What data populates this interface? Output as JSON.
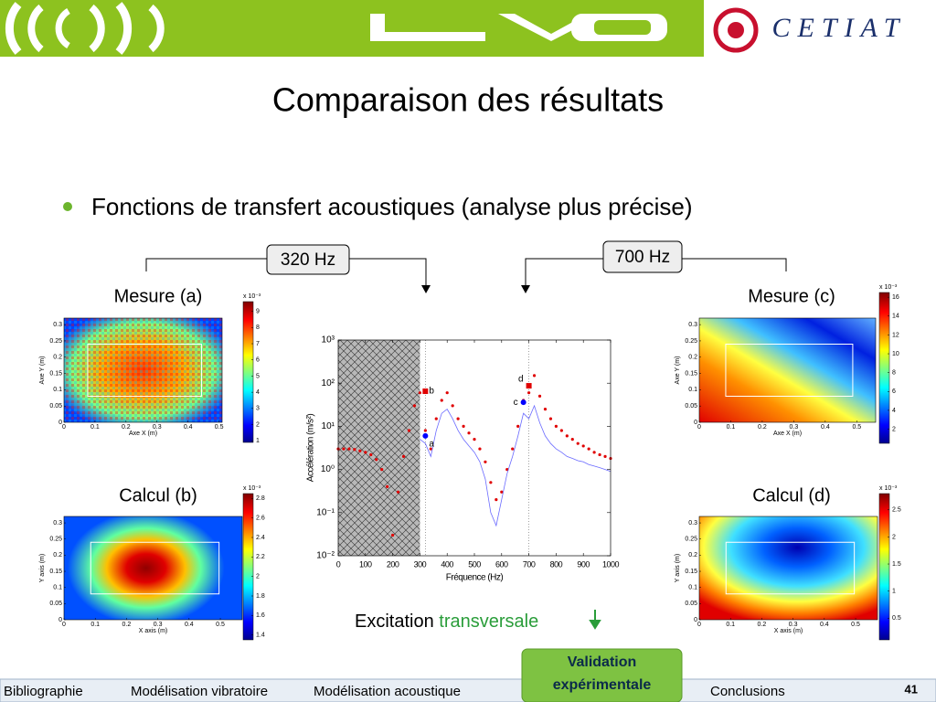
{
  "header": {
    "logo_right": "CETIAT"
  },
  "title": "Comparaison des résultats",
  "bullet": "Fonctions de transfert acoustiques (analyse plus précise)",
  "markers": [
    "320 Hz",
    "700 Hz"
  ],
  "excitation": {
    "text": "Excitation",
    "highlight": "transversale"
  },
  "nav": {
    "items": [
      "Bibliographie",
      "Modélisation vibratoire",
      "Modélisation acoustique",
      "Validation expérimentale",
      "Conclusions"
    ],
    "page": "41"
  },
  "chart_data": [
    {
      "type": "heatmap",
      "title": "Mesure (a)",
      "xlabel": "Axe X (m)",
      "ylabel": "Axe Y (m)",
      "xlim": [
        0,
        0.51
      ],
      "xticks": [
        0,
        0.1,
        0.2,
        0.3,
        0.4,
        0.5
      ],
      "ylim": [
        0,
        0.32
      ],
      "yticks": [
        0,
        0.05,
        0.1,
        0.15,
        0.2,
        0.25,
        0.3
      ],
      "colorbar": {
        "multiplier": "x 10⁻³",
        "clim": [
          0.9,
          9.6
        ],
        "ticks": [
          1,
          2,
          3,
          4,
          5,
          6,
          7,
          8,
          9
        ]
      }
    },
    {
      "type": "heatmap",
      "title": "Calcul (b)",
      "xlabel": "X axis (m)",
      "ylabel": "Y axis (m)",
      "xlim": [
        0,
        0.57
      ],
      "xticks": [
        0,
        0.1,
        0.2,
        0.3,
        0.4,
        0.5
      ],
      "ylim": [
        0,
        0.32
      ],
      "yticks": [
        0,
        0.05,
        0.1,
        0.15,
        0.2,
        0.25,
        0.3
      ],
      "colorbar": {
        "multiplier": "x 10⁻³",
        "clim": [
          1.35,
          2.85
        ],
        "ticks": [
          1.4,
          1.6,
          1.8,
          2,
          2.2,
          2.4,
          2.6,
          2.8
        ]
      }
    },
    {
      "type": "heatmap",
      "title": "Mesure (c)",
      "xlabel": "Axe X (m)",
      "ylabel": "Axe Y (m)",
      "xlim": [
        0,
        0.56
      ],
      "xticks": [
        0,
        0.1,
        0.2,
        0.3,
        0.4,
        0.5
      ],
      "ylim": [
        0,
        0.32
      ],
      "yticks": [
        0,
        0.05,
        0.1,
        0.15,
        0.2,
        0.25,
        0.3
      ],
      "colorbar": {
        "multiplier": "x 10⁻³",
        "clim": [
          0.5,
          16.5
        ],
        "ticks": [
          2,
          4,
          6,
          8,
          10,
          12,
          14,
          16
        ]
      }
    },
    {
      "type": "heatmap",
      "title": "Calcul (d)",
      "xlabel": "X axis (m)",
      "ylabel": "Y axis (m)",
      "xlim": [
        0,
        0.57
      ],
      "xticks": [
        0,
        0.1,
        0.2,
        0.3,
        0.4,
        0.5
      ],
      "ylim": [
        0,
        0.32
      ],
      "yticks": [
        0,
        0.05,
        0.1,
        0.15,
        0.2,
        0.25,
        0.3
      ],
      "colorbar": {
        "multiplier": "x 10⁻³",
        "clim": [
          0.1,
          2.8
        ],
        "ticks": [
          0.5,
          1,
          1.5,
          2,
          2.5
        ]
      }
    },
    {
      "type": "line",
      "xlabel": "Fréquence (Hz)",
      "ylabel": "Accélération (m/s²)",
      "ylog": true,
      "xlim": [
        0,
        1000
      ],
      "xticks": [
        0,
        100,
        200,
        300,
        400,
        500,
        600,
        700,
        800,
        900,
        1000
      ],
      "ylim": [
        0.01,
        1000
      ],
      "yticks": [
        {
          "value": 0.01,
          "label": "10⁻²"
        },
        {
          "value": 0.1,
          "label": "10⁻¹"
        },
        {
          "value": 1,
          "label": "10⁰"
        },
        {
          "value": 10,
          "label": "10¹"
        },
        {
          "value": 100,
          "label": "10²"
        },
        {
          "value": 1000,
          "label": "10³"
        }
      ],
      "shaded_xrange": [
        0,
        300
      ],
      "reference_lines": [
        320,
        700
      ],
      "series": [
        {
          "color": "#e00000",
          "style": "dots",
          "x": [
            0,
            20,
            40,
            60,
            80,
            100,
            120,
            140,
            160,
            180,
            200,
            220,
            240,
            260,
            280,
            300,
            320,
            340,
            360,
            380,
            400,
            420,
            440,
            460,
            480,
            500,
            520,
            540,
            560,
            580,
            600,
            620,
            640,
            660,
            680,
            700,
            720,
            740,
            760,
            780,
            800,
            820,
            840,
            860,
            880,
            900,
            920,
            940,
            960,
            980,
            1000
          ],
          "values": [
            3,
            3,
            3,
            2.9,
            2.7,
            2.5,
            2.2,
            1.7,
            1,
            0.4,
            0.03,
            0.3,
            2,
            8,
            30,
            60,
            8,
            3,
            15,
            40,
            60,
            30,
            15,
            10,
            7,
            5,
            3,
            1.5,
            0.5,
            0.2,
            0.3,
            1,
            3,
            10,
            40,
            60,
            150,
            50,
            25,
            15,
            10,
            8,
            6,
            5,
            4,
            3.5,
            3,
            2.5,
            2.2,
            2,
            1.8
          ]
        },
        {
          "color": "#6a6aff",
          "style": "line",
          "x": [
            300,
            320,
            340,
            360,
            380,
            400,
            420,
            440,
            460,
            480,
            500,
            520,
            540,
            560,
            580,
            600,
            620,
            640,
            660,
            680,
            700,
            720,
            740,
            760,
            780,
            800,
            820,
            840,
            860,
            880,
            900,
            920,
            940,
            960,
            980,
            1000
          ],
          "values": [
            5,
            4,
            2,
            8,
            20,
            25,
            15,
            8,
            5,
            3.5,
            2.5,
            1.5,
            0.6,
            0.1,
            0.05,
            0.2,
            0.8,
            2,
            6,
            20,
            15,
            30,
            12,
            6,
            4,
            3,
            2.5,
            2,
            1.8,
            1.6,
            1.5,
            1.3,
            1.2,
            1.1,
            1,
            0.9
          ]
        }
      ],
      "annotations": [
        {
          "label": "a",
          "x": 320,
          "y": 6,
          "color": "#0000ff",
          "marker": "circle"
        },
        {
          "label": "b",
          "x": 320,
          "y": 65,
          "color": "#e00000",
          "marker": "square"
        },
        {
          "label": "c",
          "x": 680,
          "y": 36,
          "color": "#0000ff",
          "marker": "circle"
        },
        {
          "label": "d",
          "x": 700,
          "y": 87,
          "color": "#e00000",
          "marker": "square"
        }
      ]
    }
  ]
}
